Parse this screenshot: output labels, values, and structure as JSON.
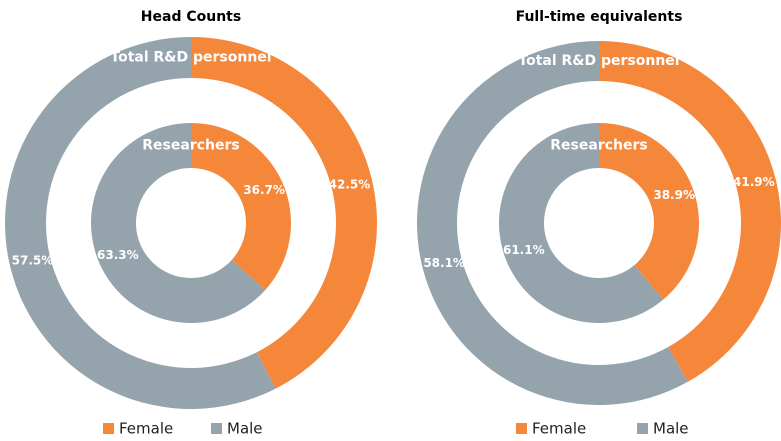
{
  "chart_data": [
    {
      "type": "donut",
      "title": "Head Counts",
      "categories": [
        "Female",
        "Male"
      ],
      "colors": [
        "#f5873b",
        "#95a3ad"
      ],
      "series": [
        {
          "name": "Total R&D personnel",
          "values": [
            42.5,
            57.5
          ],
          "value_labels": [
            "42.5%",
            "57.5%"
          ]
        },
        {
          "name": "Researchers",
          "values": [
            36.7,
            63.3
          ],
          "value_labels": [
            "36.7%",
            "63.3%"
          ]
        }
      ]
    },
    {
      "type": "donut",
      "title": "Full-time equivalents",
      "categories": [
        "Female",
        "Male"
      ],
      "colors": [
        "#f5873b",
        "#95a3ad"
      ],
      "series": [
        {
          "name": "Total R&D personnel",
          "values": [
            41.9,
            58.1
          ],
          "value_labels": [
            "41.9%",
            "58.1%"
          ]
        },
        {
          "name": "Researchers",
          "values": [
            38.9,
            61.1
          ],
          "value_labels": [
            "38.9%",
            "61.1%"
          ]
        }
      ]
    }
  ]
}
